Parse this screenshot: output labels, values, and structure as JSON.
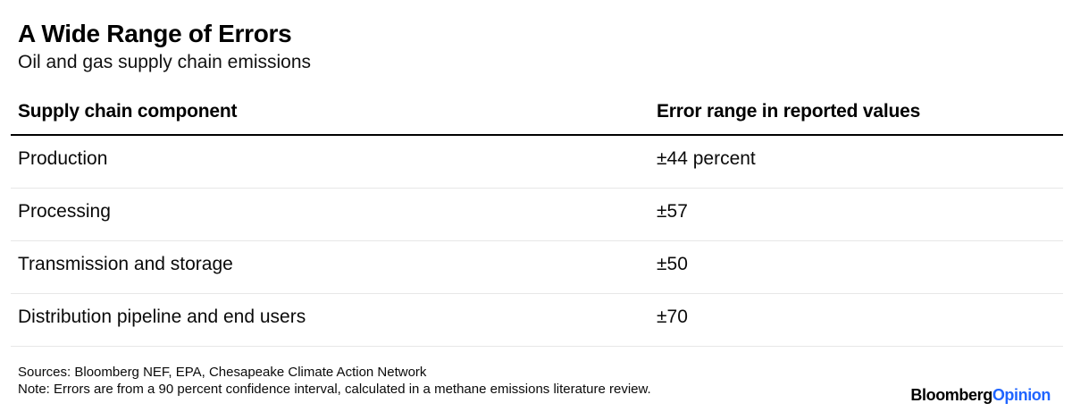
{
  "header": {
    "title": "A Wide Range of Errors",
    "subtitle": "Oil and gas supply chain emissions"
  },
  "table": {
    "columns": [
      "Supply chain component",
      "Error range in reported values"
    ],
    "rows": [
      {
        "component": "Production",
        "error": "±44 percent"
      },
      {
        "component": "Processing",
        "error": "±57"
      },
      {
        "component": "Transmission and storage",
        "error": "±50"
      },
      {
        "component": "Distribution pipeline and end users",
        "error": "±70"
      }
    ]
  },
  "footer": {
    "sources": "Sources: Bloomberg NEF, EPA, Chesapeake Climate Action Network",
    "note": "Note: Errors are from a 90 percent confidence interval, calculated in a methane emissions literature review.",
    "brand_black": "Bloomberg",
    "brand_blue": "Opinion"
  },
  "colors": {
    "brand_blue": "#2065ff",
    "header_rule": "#000000",
    "row_divider": "#e7e7e7",
    "background": "#ffffff"
  },
  "chart_data": {
    "type": "table",
    "title": "A Wide Range of Errors",
    "subtitle": "Oil and gas supply chain emissions",
    "columns": [
      "Supply chain component",
      "Error range in reported values"
    ],
    "categories": [
      "Production",
      "Processing",
      "Transmission and storage",
      "Distribution pipeline and end users"
    ],
    "values": [
      44,
      57,
      50,
      70
    ],
    "value_unit": "± percent",
    "rows": [
      [
        "Production",
        "±44 percent"
      ],
      [
        "Processing",
        "±57"
      ],
      [
        "Transmission and storage",
        "±50"
      ],
      [
        "Distribution pipeline and end users",
        "±70"
      ]
    ],
    "source": "Sources: Bloomberg NEF, EPA, Chesapeake Climate Action Network",
    "note": "Note: Errors are from a 90 percent confidence interval, calculated in a methane emissions literature review."
  }
}
